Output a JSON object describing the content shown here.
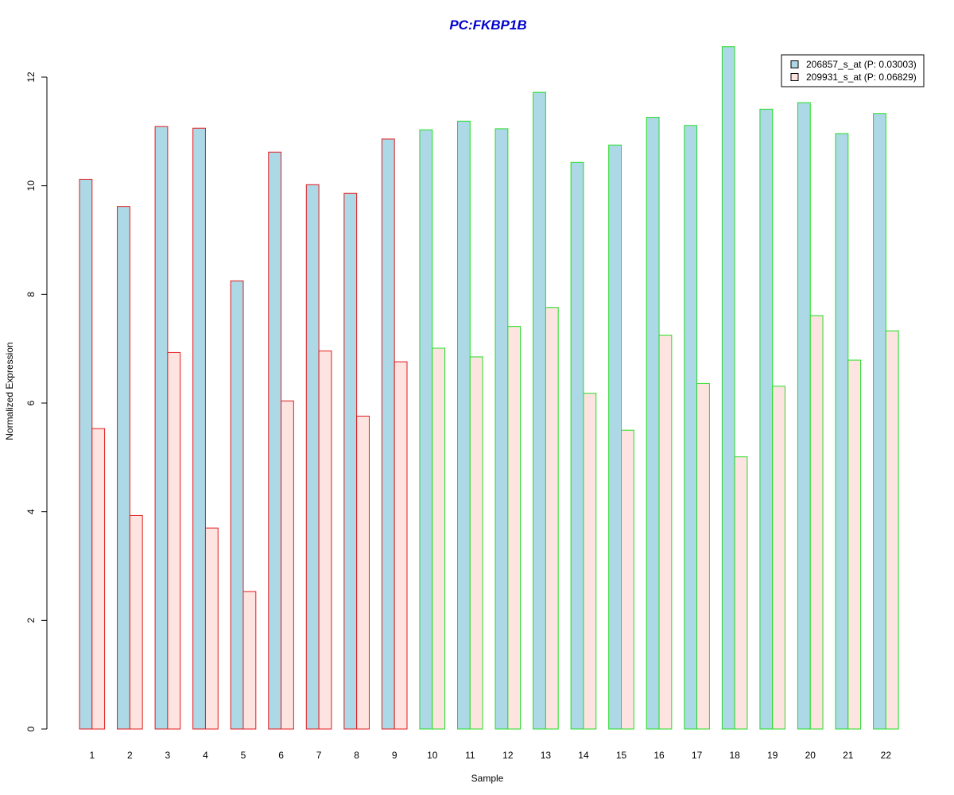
{
  "chart_data": {
    "type": "bar",
    "title": "PC:FKBP1B",
    "xlabel": "Sample",
    "ylabel": "Normalized Expression",
    "ylim": [
      0,
      12
    ],
    "yticks": [
      0,
      2,
      4,
      6,
      8,
      10,
      12
    ],
    "grid": false,
    "legend_position": "top-right",
    "categories": [
      "1",
      "2",
      "3",
      "4",
      "5",
      "6",
      "7",
      "8",
      "9",
      "10",
      "11",
      "12",
      "13",
      "14",
      "15",
      "16",
      "17",
      "18",
      "19",
      "20",
      "21",
      "22"
    ],
    "group_border_colors": [
      "#e31a1c",
      "#e31a1c",
      "#e31a1c",
      "#e31a1c",
      "#e31a1c",
      "#e31a1c",
      "#e31a1c",
      "#e31a1c",
      "#e31a1c",
      "#22dd22",
      "#22dd22",
      "#22dd22",
      "#22dd22",
      "#22dd22",
      "#22dd22",
      "#22dd22",
      "#22dd22",
      "#22dd22",
      "#22dd22",
      "#22dd22",
      "#22dd22",
      "#22dd22"
    ],
    "series": [
      {
        "name": "206857_s_at (P: 0.03003)",
        "fill": "#add8e6",
        "values": [
          10.12,
          9.62,
          11.09,
          11.06,
          8.25,
          10.62,
          10.02,
          9.86,
          10.86,
          11.03,
          11.19,
          11.05,
          11.72,
          10.43,
          10.75,
          11.26,
          11.11,
          12.56,
          11.41,
          11.53,
          10.96,
          11.33
        ]
      },
      {
        "name": "209931_s_at (P: 0.06829)",
        "fill": "#fde4e1",
        "values": [
          5.53,
          3.93,
          6.93,
          3.7,
          2.53,
          6.04,
          6.96,
          5.76,
          6.76,
          7.01,
          6.85,
          7.41,
          7.76,
          6.18,
          5.5,
          7.25,
          6.36,
          5.01,
          6.31,
          7.61,
          6.79,
          7.33
        ]
      }
    ],
    "colors": {
      "title": "#0000cc",
      "axis": "#000000"
    }
  }
}
